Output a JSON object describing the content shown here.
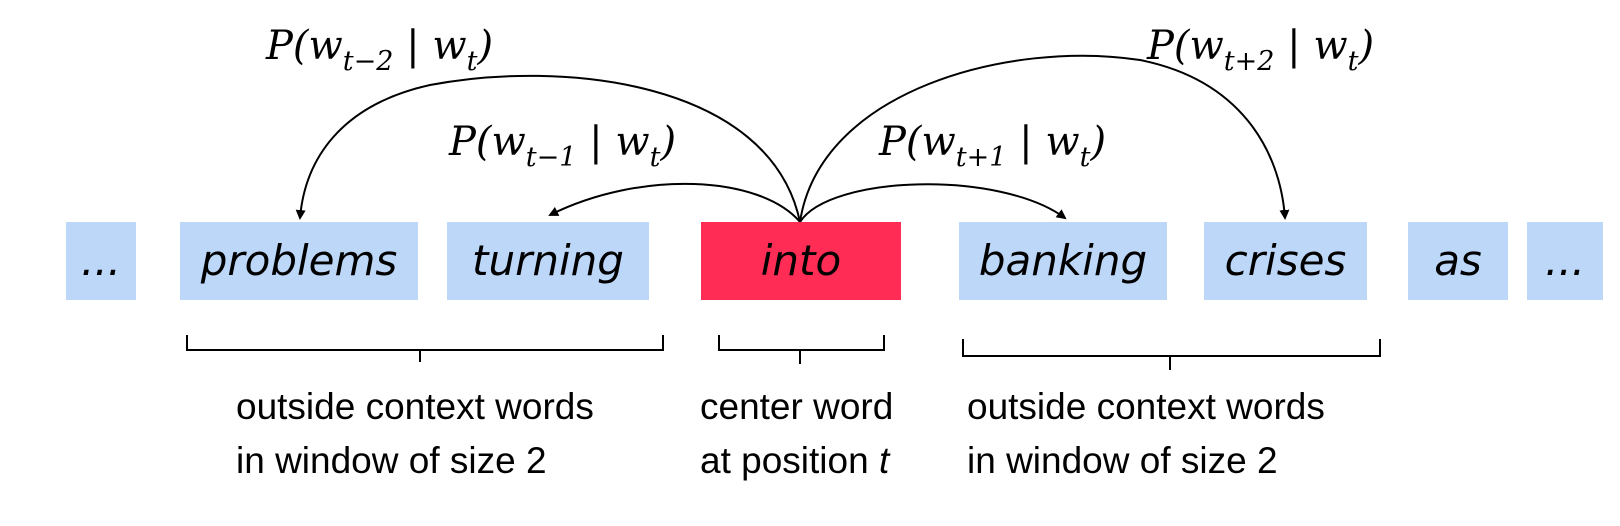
{
  "words": [
    {
      "id": "ellipsis-left",
      "text": "..."
    },
    {
      "id": "problems",
      "text": "problems"
    },
    {
      "id": "turning",
      "text": "turning"
    },
    {
      "id": "into",
      "text": "into",
      "center": true
    },
    {
      "id": "banking",
      "text": "banking"
    },
    {
      "id": "crises",
      "text": "crises"
    },
    {
      "id": "as",
      "text": "as"
    },
    {
      "id": "ellipsis-right",
      "text": "..."
    }
  ],
  "probabilities": {
    "t_minus_2": {
      "p": "P(",
      "w": "w",
      "sub": "t−2",
      "bar": " | ",
      "w2": "w",
      "sub2": "t",
      "close": ")"
    },
    "t_minus_1": {
      "p": "P(",
      "w": "w",
      "sub": "t−1",
      "bar": " | ",
      "w2": "w",
      "sub2": "t",
      "close": ")"
    },
    "t_plus_1": {
      "p": "P(",
      "w": "w",
      "sub": "t+1",
      "bar": " | ",
      "w2": "w",
      "sub2": "t",
      "close": ")"
    },
    "t_plus_2": {
      "p": "P(",
      "w": "w",
      "sub": "t+2",
      "bar": " | ",
      "w2": "w",
      "sub2": "t",
      "close": ")"
    }
  },
  "captions": {
    "left": {
      "line1": "outside context words",
      "line2": "in window of size 2"
    },
    "center": {
      "line1": "center word",
      "line2_prefix": "at position ",
      "line2_var": "t"
    },
    "right": {
      "line1": "outside context words",
      "line2": "in window of size 2"
    }
  },
  "colors": {
    "context_box": "#bdd7f9",
    "center_box": "#ff2d55"
  }
}
